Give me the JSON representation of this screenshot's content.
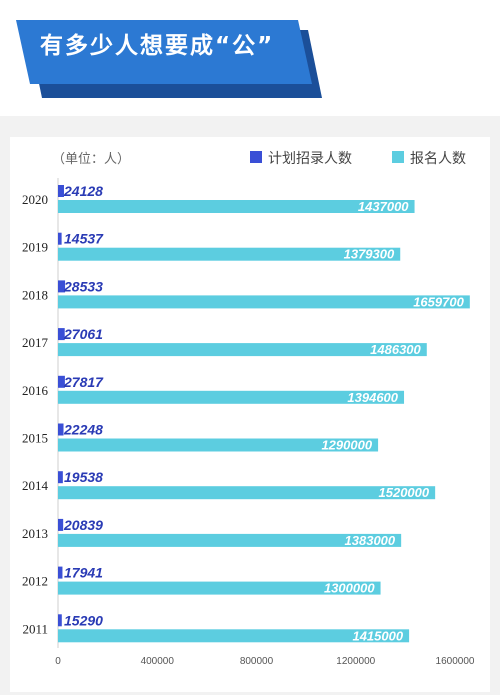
{
  "banner": {
    "title": "有多少人想要成“公”"
  },
  "colors": {
    "banner": "#2c79d3",
    "banner_dark": "#1b4f99",
    "recruit": "#3a4fd6",
    "applicants": "#5ccde0",
    "label_recruit": "#2a3bb5",
    "label_applicants": "#ffffff",
    "year_text": "#222222",
    "axis_text": "#555555"
  },
  "chart_data": {
    "type": "bar",
    "orientation": "horizontal",
    "unit": "（单位：人）",
    "categories": [
      "2020",
      "2019",
      "2018",
      "2017",
      "2016",
      "2015",
      "2014",
      "2013",
      "2012",
      "2011"
    ],
    "series": [
      {
        "name": "计划招录人数",
        "values": [
          24128,
          14537,
          28533,
          27061,
          27817,
          22248,
          19538,
          20839,
          17941,
          15290
        ]
      },
      {
        "name": "报名人数",
        "values": [
          1437000,
          1379300,
          1659700,
          1486300,
          1394600,
          1290000,
          1520000,
          1383000,
          1300000,
          1415000
        ]
      }
    ],
    "xlim": [
      0,
      1600000
    ],
    "xticks": [
      "0",
      "400000",
      "800000",
      "1200000",
      "1600000"
    ],
    "legend": "top-right",
    "grid": false
  }
}
